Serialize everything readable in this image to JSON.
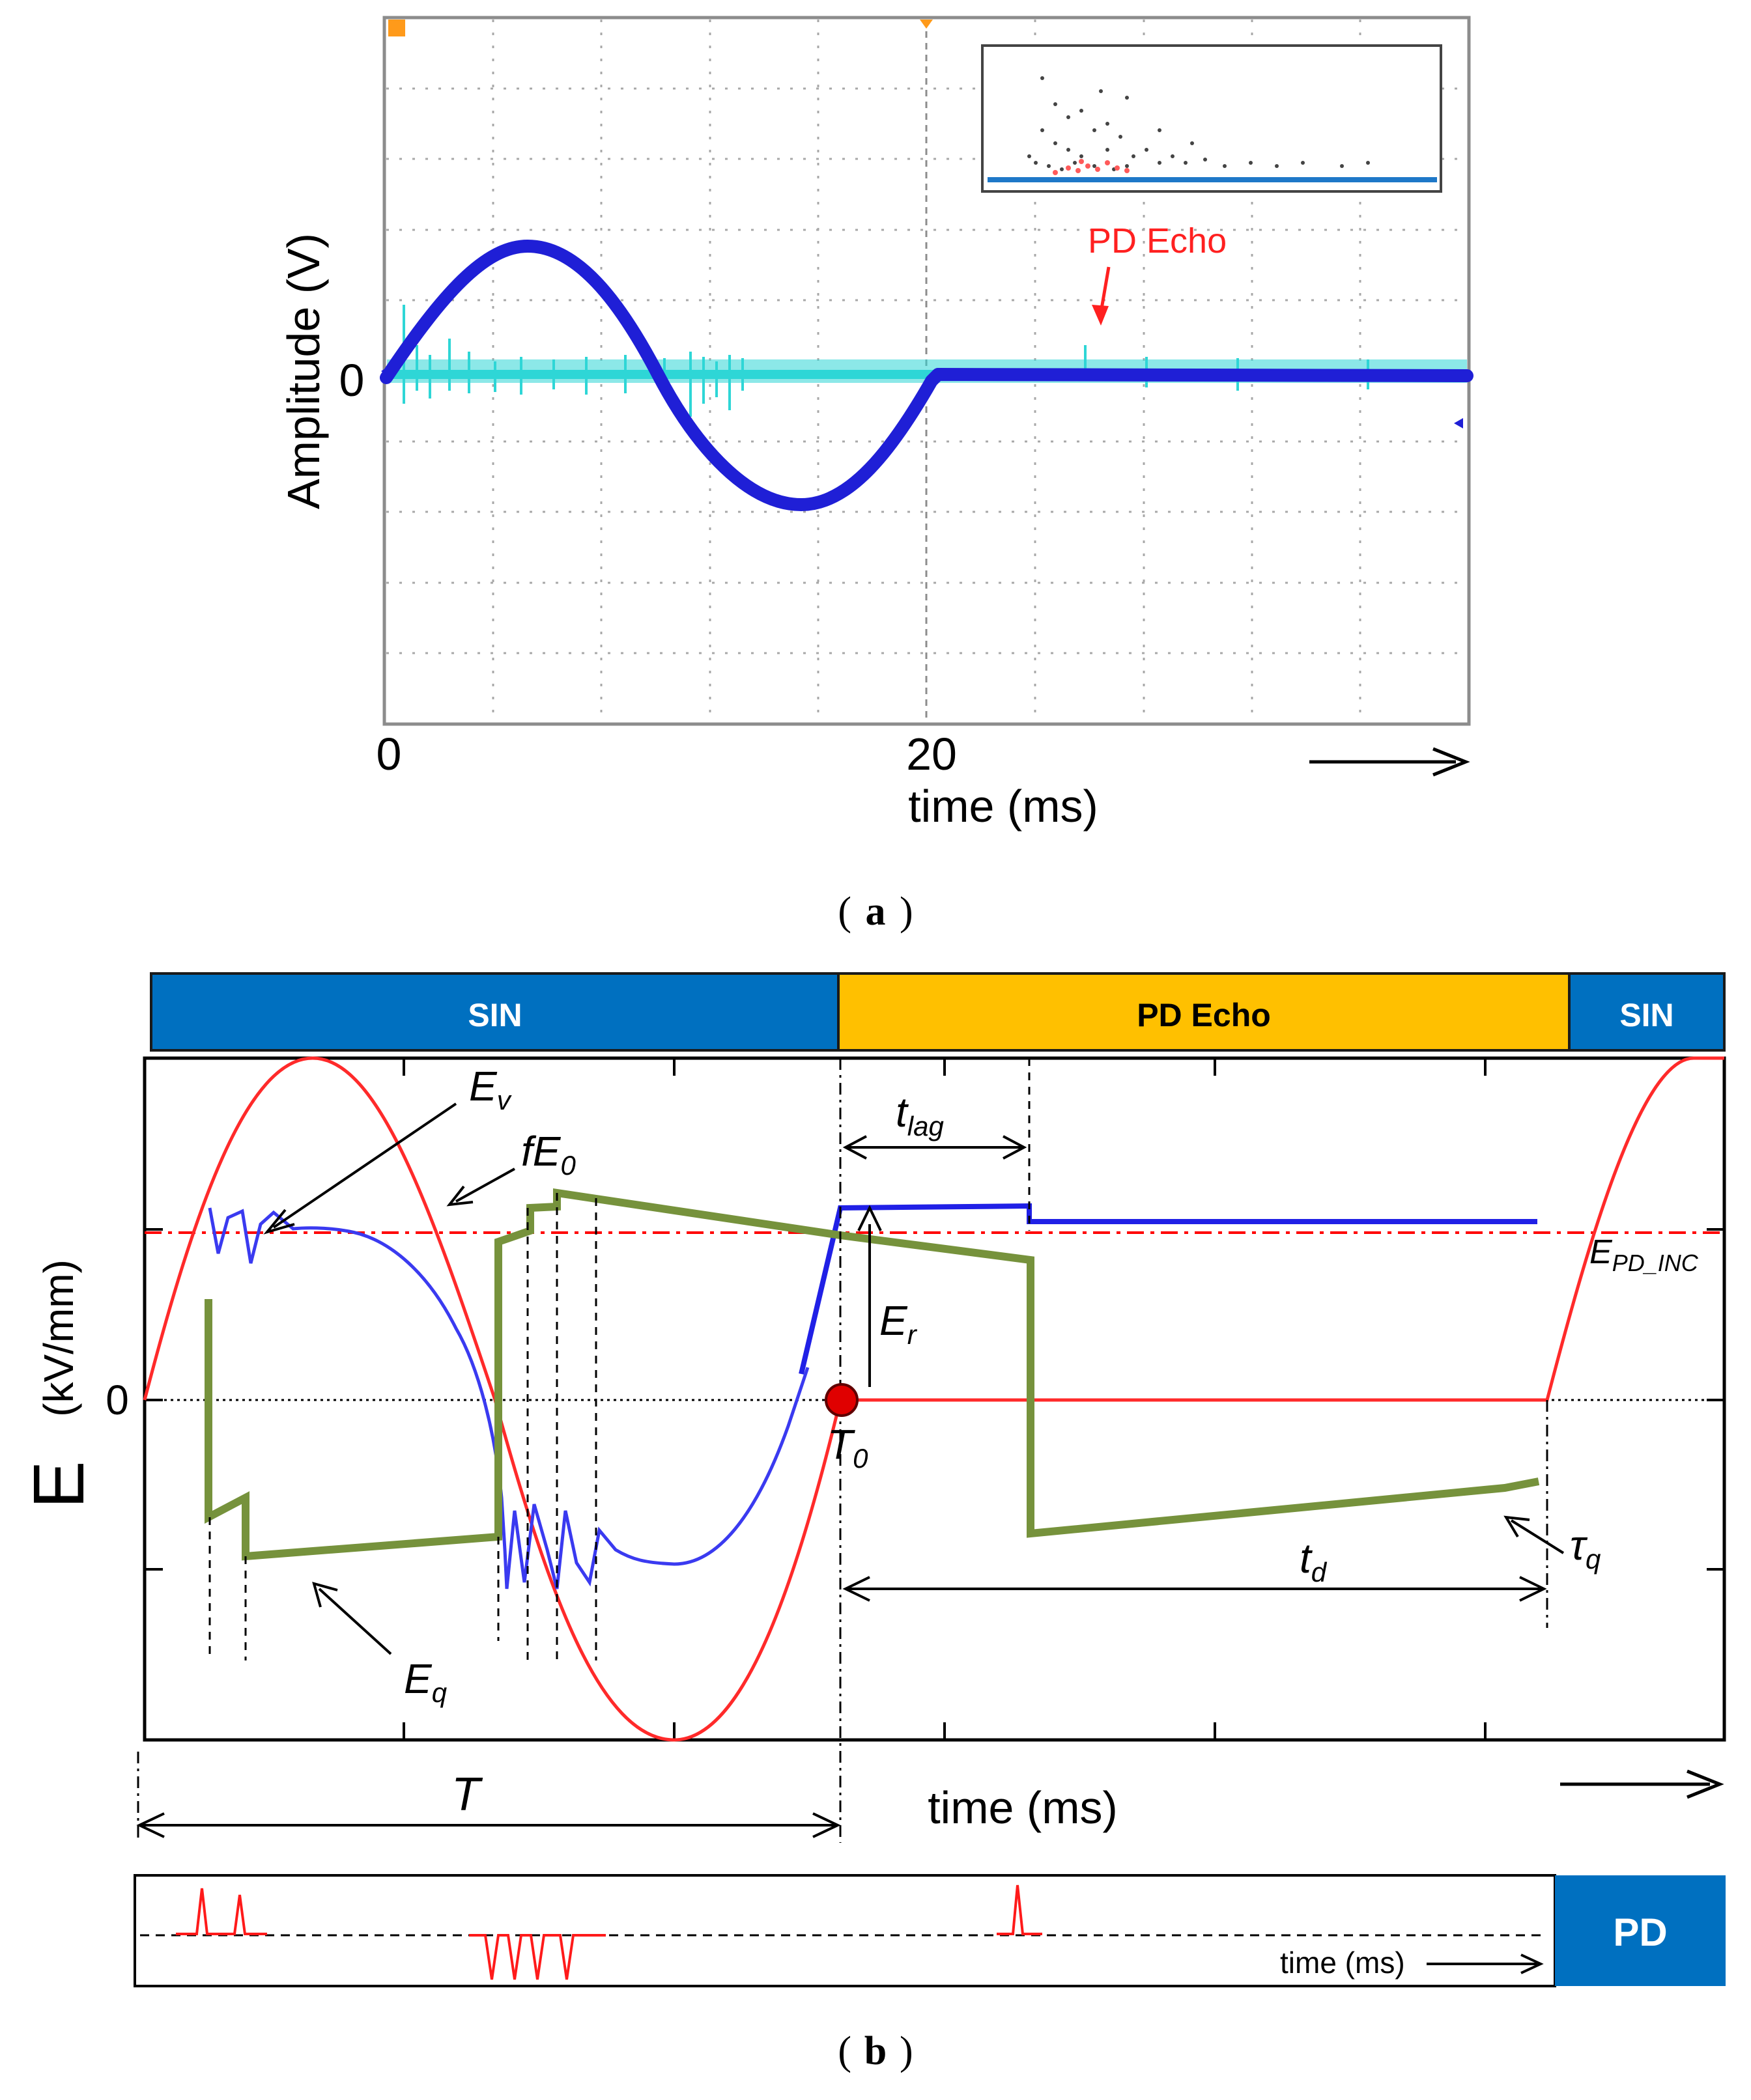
{
  "panel_a": {
    "y_axis_label": "Amplitude  (V)",
    "y_zero_label": "0",
    "x_tick_0": "0",
    "x_tick_20": "20",
    "x_axis_label": "time  (ms)",
    "echo_annotation": "PD Echo",
    "caption": "a",
    "colors": {
      "sine": "#1f1fd6",
      "pd_signal": "#2ed6d6",
      "annotation": "#ff2020",
      "grid": "#9a9a9a"
    }
  },
  "panel_b": {
    "bar_sin_left": "SIN",
    "bar_pd_echo": "PD Echo",
    "bar_sin_right": "SIN",
    "y_axis_symbol": "E",
    "y_axis_unit": "(kV/mm)",
    "y_zero_label": "0",
    "label_Ev_main": "E",
    "label_Ev_sub": "v",
    "label_fE0_main": "fE",
    "label_fE0_sub": "0",
    "label_tlag_main": "t",
    "label_tlag_sub": "lag",
    "label_Er_main": "E",
    "label_Er_sub": "r",
    "label_T0_main": "T",
    "label_T0_sub": "0",
    "label_Epd_main": "E",
    "label_Epd_sub": "PD_INC",
    "label_Eq_main": "E",
    "label_Eq_sub": "q",
    "label_td_main": "t",
    "label_td_sub": "d",
    "label_tauq_main": "τ",
    "label_tauq_sub": "q",
    "label_T": "T",
    "x_axis_label": "time (ms)",
    "pd_strip_time_label": "time (ms)",
    "pd_box_label": "PD",
    "caption": "b",
    "colors": {
      "sin_bar": "#0070c0",
      "echo_bar": "#ffc000",
      "applied_field": "#ff2a2a",
      "total_field": "#2020e6",
      "charge_field": "#76923c",
      "threshold": "#ff0000"
    }
  }
}
